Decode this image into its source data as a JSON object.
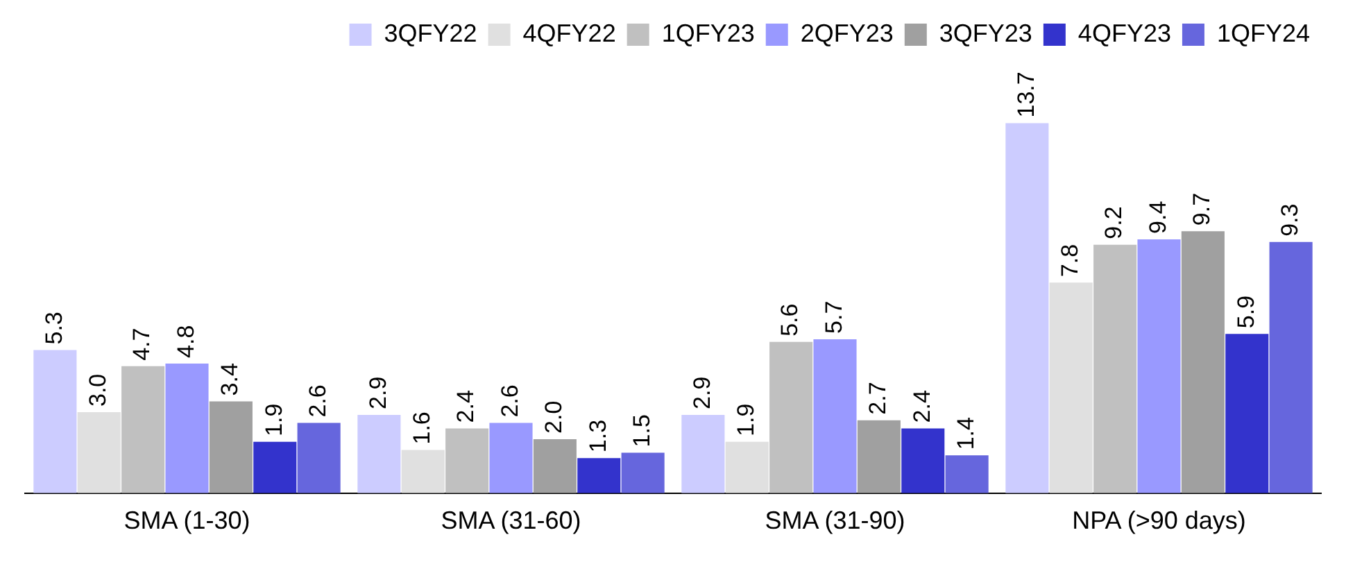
{
  "chart_data": {
    "type": "bar",
    "categories": [
      "SMA (1-30)",
      "SMA (31-60)",
      "SMA (31-90)",
      "NPA (>90 days)"
    ],
    "series": [
      {
        "name": "3QFY22",
        "color": "#ccccff",
        "values": [
          5.3,
          2.9,
          2.9,
          13.7
        ],
        "value_labels": [
          "5.3",
          "2.9",
          "2.9",
          "13.7"
        ]
      },
      {
        "name": "4QFY22",
        "color": "#e0e0e0",
        "values": [
          3.0,
          1.6,
          1.9,
          7.8
        ],
        "value_labels": [
          "3.0",
          "1.6",
          "1.9",
          "7.8"
        ]
      },
      {
        "name": "1QFY23",
        "color": "#c0c0c0",
        "values": [
          4.7,
          2.4,
          5.6,
          9.2
        ],
        "value_labels": [
          "4.7",
          "2.4",
          "5.6",
          "9.2"
        ]
      },
      {
        "name": "2QFY23",
        "color": "#9999ff",
        "values": [
          4.8,
          2.6,
          5.7,
          9.4
        ],
        "value_labels": [
          "4.8",
          "2.6",
          "5.7",
          "9.4"
        ]
      },
      {
        "name": "3QFY23",
        "color": "#a0a0a0",
        "values": [
          3.4,
          2.0,
          2.7,
          9.7
        ],
        "value_labels": [
          "3.4",
          "2.0",
          "2.7",
          "9.7"
        ]
      },
      {
        "name": "4QFY23",
        "color": "#3333cc",
        "values": [
          1.9,
          1.3,
          2.4,
          5.9
        ],
        "value_labels": [
          "1.9",
          "1.3",
          "2.4",
          "5.9"
        ]
      },
      {
        "name": "1QFY24",
        "color": "#6666dd",
        "values": [
          2.6,
          1.5,
          1.4,
          9.3
        ],
        "value_labels": [
          "2.6",
          "1.5",
          "1.4",
          "9.3"
        ]
      }
    ],
    "legend": "top right",
    "grid": false
  }
}
